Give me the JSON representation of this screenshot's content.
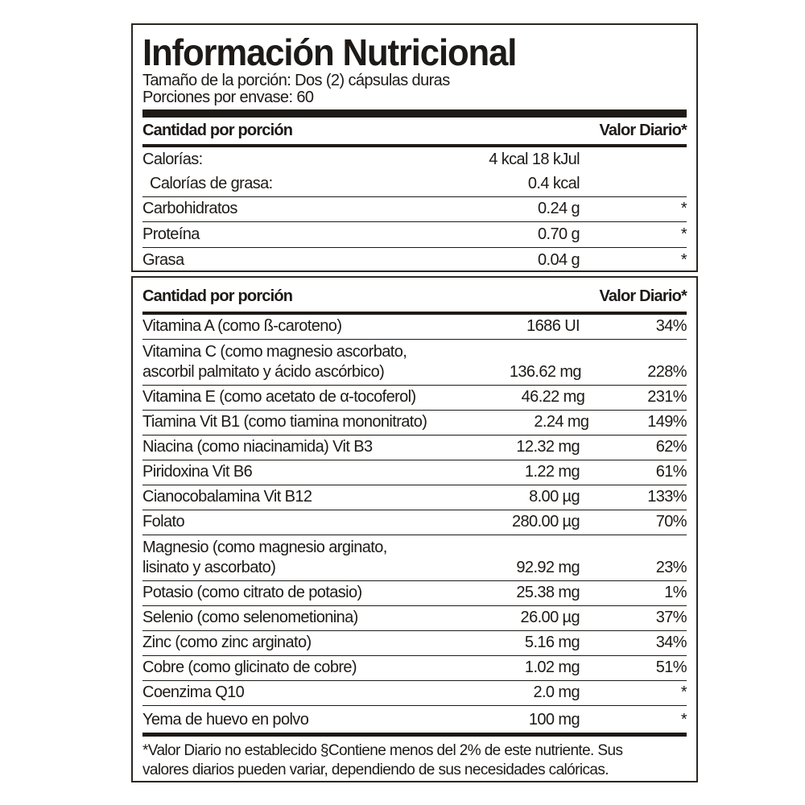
{
  "title": "Información Nutricional",
  "serving_size": "Tamaño de la porción: Dos (2) cápsulas duras",
  "servings_per_container": "Porciones por envase: 60",
  "section1": {
    "header_left": "Cantidad por porción",
    "header_right": "Valor Diario*",
    "rows": [
      {
        "name": "Calorías:",
        "amount": "4 kcal 18 kJul",
        "dv": ""
      },
      {
        "name": "Calorías de grasa:",
        "amount": "0.4 kcal",
        "dv": "",
        "indent": true
      },
      {
        "name": "Carbohidratos",
        "amount": "0.24 g",
        "dv": "*"
      },
      {
        "name": "Proteína",
        "amount": "0.70 g",
        "dv": "*"
      },
      {
        "name": "Grasa",
        "amount": "0.04 g",
        "dv": "*"
      }
    ]
  },
  "section2": {
    "header_left": "Cantidad por porción",
    "header_right": "Valor Diario*",
    "rows": [
      {
        "name": "Vitamina A (como ß-caroteno)",
        "amount": "1686 UI",
        "dv": "34%"
      },
      {
        "name": "Vitamina C (como magnesio ascorbato,",
        "name2": "ascorbil palmitato y ácido ascórbico)",
        "amount": "136.62 mg",
        "dv": "228%"
      },
      {
        "name": "Vitamina E (como acetato de α-tocoferol)",
        "amount": "46.22 mg",
        "dv": "231%"
      },
      {
        "name": "Tiamina Vit B1 (como tiamina mononitrato)",
        "amount": "2.24 mg",
        "dv": "149%"
      },
      {
        "name": "Niacina (como niacinamida) Vit B3",
        "amount": "12.32 mg",
        "dv": "62%"
      },
      {
        "name": "Piridoxina Vit B6",
        "amount": "1.22 mg",
        "dv": "61%"
      },
      {
        "name": "Cianocobalamina Vit B12",
        "amount": "8.00 µg",
        "dv": "133%"
      },
      {
        "name": "Folato",
        "amount": "280.00 µg",
        "dv": "70%"
      },
      {
        "name": "Magnesio (como magnesio arginato,",
        "name2": "lisinato y ascorbato)",
        "amount": "92.92 mg",
        "dv": "23%"
      },
      {
        "name": "Potasio (como citrato de potasio)",
        "amount": "25.38 mg",
        "dv": "1%"
      },
      {
        "name": "Selenio (como selenometionina)",
        "amount": "26.00 µg",
        "dv": "37%"
      },
      {
        "name": "Zinc (como zinc arginato)",
        "amount": "5.16 mg",
        "dv": "34%"
      },
      {
        "name": "Cobre (como glicinato de cobre)",
        "amount": "1.02 mg",
        "dv": "51%"
      },
      {
        "name": "Coenzima Q10",
        "amount": "2.0 mg",
        "dv": "*"
      },
      {
        "name": "Yema de huevo en polvo",
        "amount": "100 mg",
        "dv": "*"
      }
    ]
  },
  "footnote": {
    "line1": "*Valor Diario  no establecido §Contiene menos del 2% de este nutriente. Sus",
    "line2": "valores diarios pueden variar, dependiendo de sus necesidades calóricas."
  }
}
